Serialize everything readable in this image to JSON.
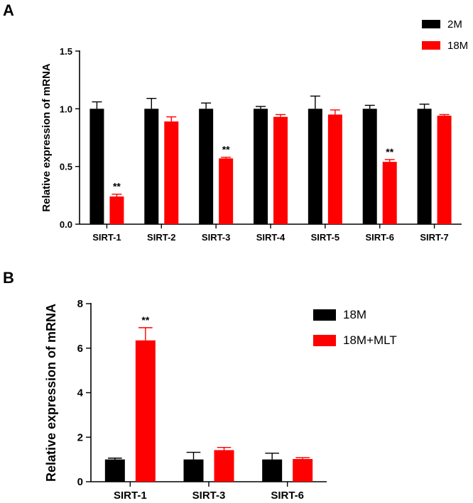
{
  "chart_data": [
    {
      "panel": "A",
      "type": "bar",
      "ylabel": "Relative expression of mRNA",
      "xlabel": "",
      "ylim": [
        0,
        1.5
      ],
      "yticks": [
        "0.0",
        "0.5",
        "1.0",
        "1.5"
      ],
      "categories": [
        "SIRT-1",
        "SIRT-2",
        "SIRT-3",
        "SIRT-4",
        "SIRT-5",
        "SIRT-6",
        "SIRT-7"
      ],
      "series": [
        {
          "name": "2M",
          "color": "#000000",
          "values": [
            1.0,
            1.0,
            1.0,
            1.0,
            1.0,
            1.0,
            1.0
          ],
          "errors": [
            0.06,
            0.09,
            0.05,
            0.02,
            0.11,
            0.03,
            0.04
          ]
        },
        {
          "name": "18M",
          "color": "#ff0000",
          "values": [
            0.24,
            0.89,
            0.57,
            0.93,
            0.95,
            0.54,
            0.94
          ],
          "errors": [
            0.02,
            0.04,
            0.01,
            0.02,
            0.04,
            0.02,
            0.01
          ]
        }
      ],
      "annotations": [
        {
          "category": "SIRT-1",
          "series": "18M",
          "text": "**"
        },
        {
          "category": "SIRT-3",
          "series": "18M",
          "text": "**"
        },
        {
          "category": "SIRT-6",
          "series": "18M",
          "text": "**"
        }
      ],
      "legend_position": "top-right"
    },
    {
      "panel": "B",
      "type": "bar",
      "ylabel": "Relative expression of mRNA",
      "xlabel": "",
      "ylim": [
        0,
        8
      ],
      "yticks": [
        "0",
        "2",
        "4",
        "6",
        "8"
      ],
      "categories": [
        "SIRT-1",
        "SIRT-3",
        "SIRT-6"
      ],
      "series": [
        {
          "name": "18M",
          "color": "#000000",
          "values": [
            1.0,
            1.0,
            1.0
          ],
          "errors": [
            0.06,
            0.32,
            0.28
          ]
        },
        {
          "name": "18M+MLT",
          "color": "#ff0000",
          "values": [
            6.35,
            1.42,
            1.02
          ],
          "errors": [
            0.57,
            0.12,
            0.06
          ]
        }
      ],
      "annotations": [
        {
          "category": "SIRT-1",
          "series": "18M+MLT",
          "text": "**"
        }
      ],
      "legend_position": "top-right"
    }
  ]
}
